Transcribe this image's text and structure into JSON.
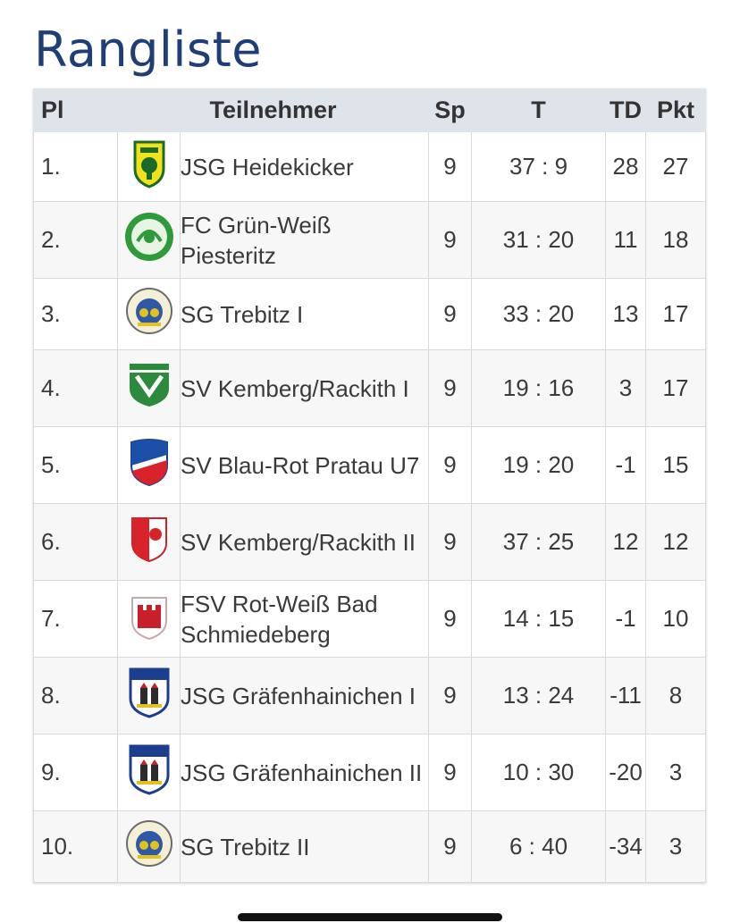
{
  "title": "Rangliste",
  "columns": {
    "pl": "Pl",
    "teilnehmer": "Teilnehmer",
    "sp": "Sp",
    "t": "T",
    "td": "TD",
    "pkt": "Pkt"
  },
  "rows": [
    {
      "pl": "1.",
      "name": "JSG Heidekicker",
      "sp": "9",
      "t": "37 : 9",
      "td": "28",
      "pkt": "27",
      "logo": "shield-green-yellow-crest"
    },
    {
      "pl": "2.",
      "name": "FC Grün-Weiß Piesteritz",
      "sp": "9",
      "t": "31 : 20",
      "td": "11",
      "pkt": "18",
      "logo": "round-green-badge"
    },
    {
      "pl": "3.",
      "name": "SG Trebitz I",
      "sp": "9",
      "t": "33 : 20",
      "td": "13",
      "pkt": "17",
      "logo": "round-blue-gold-seal"
    },
    {
      "pl": "4.",
      "name": "SV Kemberg/Rackith I",
      "sp": "9",
      "t": "19 : 16",
      "td": "3",
      "pkt": "17",
      "logo": "green-white-crest"
    },
    {
      "pl": "5.",
      "name": "SV Blau-Rot Pratau U7",
      "sp": "9",
      "t": "19 : 20",
      "td": "-1",
      "pkt": "15",
      "logo": "blue-red-shield"
    },
    {
      "pl": "6.",
      "name": "SV Kemberg/Rackith II",
      "sp": "9",
      "t": "37 : 25",
      "td": "12",
      "pkt": "12",
      "logo": "red-white-shield"
    },
    {
      "pl": "7.",
      "name": "FSV Rot-Weiß Bad Schmiedeberg",
      "sp": "9",
      "t": "14 : 15",
      "td": "-1",
      "pkt": "10",
      "logo": "red-castle-shield"
    },
    {
      "pl": "8.",
      "name": "JSG Gräfenhainichen I",
      "sp": "9",
      "t": "13 : 24",
      "td": "-11",
      "pkt": "8",
      "logo": "vfb-blue-shield"
    },
    {
      "pl": "9.",
      "name": "JSG Gräfenhainichen II",
      "sp": "9",
      "t": "10 : 30",
      "td": "-20",
      "pkt": "3",
      "logo": "vfb-blue-shield"
    },
    {
      "pl": "10.",
      "name": "SG Trebitz II",
      "sp": "9",
      "t": "6 : 40",
      "td": "-34",
      "pkt": "3",
      "logo": "round-blue-gold-seal"
    }
  ]
}
